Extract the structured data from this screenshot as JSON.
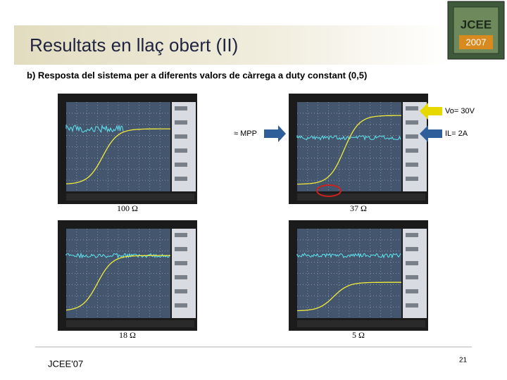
{
  "header": {
    "title": "Resultats en llaç obert (II)",
    "logo": {
      "name": "JCEE",
      "year": "2007"
    }
  },
  "subtitle": "b) Resposta del sistema per a diferents valors de càrrega a duty constant (0,5)",
  "scopes": [
    {
      "label": "100 Ω"
    },
    {
      "label": "37 Ω"
    },
    {
      "label": "18 Ω"
    },
    {
      "label": "5 Ω"
    }
  ],
  "annotations": {
    "mpp": "≈ MPP",
    "vo": "Vo= 30V",
    "il": "IL= 2A"
  },
  "footer": {
    "left": "JCEE'07",
    "page": "21"
  }
}
